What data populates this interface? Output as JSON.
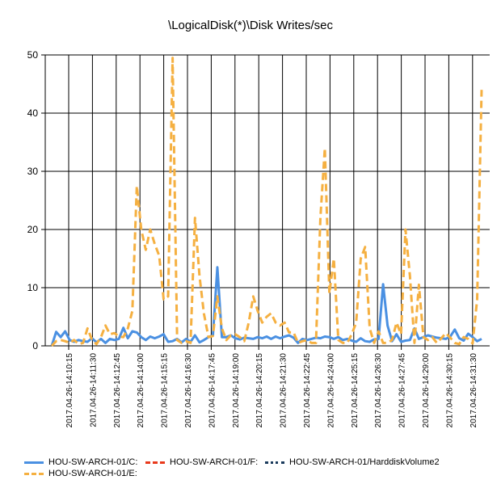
{
  "chart_data": {
    "type": "line",
    "title": "\\LogicalDisk(*)\\Disk Writes/sec",
    "xlabel": "",
    "ylabel": "",
    "ylim": [
      0,
      50
    ],
    "yticks": [
      0,
      10,
      20,
      30,
      40,
      50
    ],
    "grid": true,
    "legend": "bottom",
    "x_tick_labels": [
      "2017.04.26-14:10:15",
      "2017.04.26-14:11:30",
      "2017.04.26-14:12:45",
      "2017.04.26-14:14:00",
      "2017.04.26-14:15:15",
      "2017.04.26-14:16:30",
      "2017.04.26-14:17:45",
      "2017.04.26-14:19:00",
      "2017.04.26-14:20:15",
      "2017.04.26-14:21:30",
      "2017.04.26-14:22:45",
      "2017.04.26-14:24:00",
      "2017.04.26-14:25:15",
      "2017.04.26-14:26:30",
      "2017.04.26-14:27:45",
      "2017.04.26-14:29:00",
      "2017.04.26-14:30:15",
      "2017.04.26-14:31:30"
    ],
    "series": [
      {
        "name": "HOU-SW-ARCH-01/C:",
        "color": "#4a90e2",
        "dash": "solid",
        "values": [
          0,
          2.4,
          1.5,
          2.5,
          1,
          0.7,
          1,
          0.8,
          0.7,
          1.3,
          0.6,
          1.2,
          0.5,
          1.2,
          1,
          1.2,
          3.1,
          1.3,
          2.5,
          2.3,
          1.5,
          1,
          1.6,
          1.3,
          1.6,
          2,
          0.7,
          0.8,
          1.2,
          0.6,
          1.2,
          0.7,
          1.8,
          0.6,
          1,
          1.5,
          1.8,
          13.5,
          1.5,
          1.5,
          1.8,
          1.3,
          1.1,
          1.4,
          1.3,
          1.2,
          1.5,
          1.3,
          1.6,
          1.2,
          1.6,
          1.3,
          1.6,
          1.8,
          1.4,
          0.5,
          1.2,
          1,
          1.2,
          1.4,
          1.3,
          1.6,
          1.5,
          1.2,
          1.5,
          1,
          1.2,
          0.9,
          0.7,
          1.3,
          0.8,
          0.7,
          1.1,
          1.2,
          10.6,
          3.5,
          0.8,
          2,
          0.7,
          0.9,
          1,
          3,
          1.2,
          1.5,
          1.8,
          1.6,
          1.4,
          1.3,
          1.2,
          1.6,
          2.8,
          1.3,
          0.9,
          2.1,
          1.5,
          0.8,
          1.2
        ]
      },
      {
        "name": "HOU-SW-ARCH-01/F:",
        "color": "#e8391b",
        "dash": "dash",
        "values": []
      },
      {
        "name": "HOU-SW-ARCH-01/HarddiskVolume2",
        "color": "#1a3a5c",
        "dash": "dot",
        "values": []
      },
      {
        "name": "HOU-SW-ARCH-01/E:",
        "color": "#f5b041",
        "dash": "dash",
        "values": [
          0,
          0.8,
          1,
          0.8,
          0.5,
          1,
          0.3,
          0.5,
          3,
          1,
          0.3,
          1.5,
          3.5,
          2,
          2.2,
          1.6,
          1.5,
          3,
          6,
          27.5,
          20,
          16.5,
          20,
          17.5,
          15.5,
          8,
          8.5,
          49.5,
          1,
          0.5,
          0.8,
          0.5,
          22,
          12,
          5.5,
          1.5,
          1.7,
          8.5,
          3,
          1,
          1.8,
          2,
          1.5,
          0.8,
          4,
          8.5,
          6,
          4,
          5,
          5.6,
          4,
          3.5,
          4,
          2.3,
          2.3,
          0.5,
          0.8,
          1,
          0.5,
          0.5,
          22,
          34,
          9,
          15,
          1,
          0.5,
          0.5,
          2,
          4,
          15,
          17,
          3,
          0.5,
          2.5,
          0.5,
          0.5,
          1,
          4,
          2,
          20,
          12,
          0.5,
          10.5,
          1.5,
          1,
          1.5,
          0.5,
          1.3,
          2.2,
          1.4,
          0.5,
          0.3,
          1.5,
          1.2,
          0.4,
          8,
          44
        ]
      }
    ]
  }
}
